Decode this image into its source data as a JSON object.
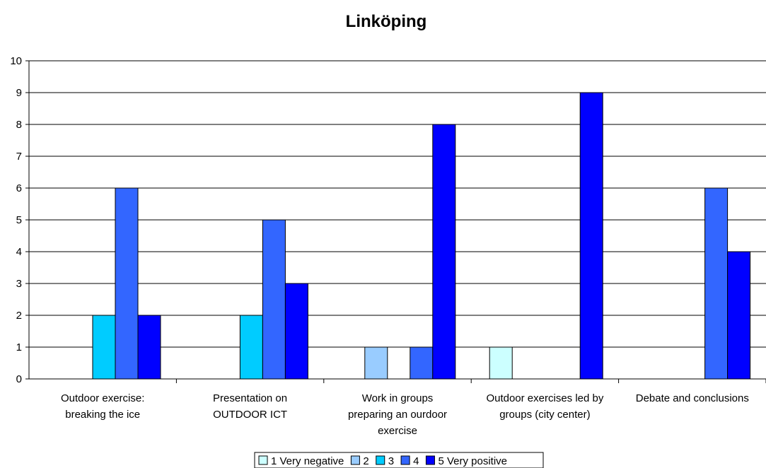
{
  "chart_data": {
    "type": "bar",
    "title": "Linköping",
    "xlabel": "",
    "ylabel": "",
    "ylim": [
      0,
      10
    ],
    "yticks": [
      0,
      1,
      2,
      3,
      4,
      5,
      6,
      7,
      8,
      9,
      10
    ],
    "grid": true,
    "legend_position": "bottom",
    "categories": [
      [
        "Outdoor exercise:",
        "breaking the ice"
      ],
      [
        "Presentation on",
        "OUTDOOR ICT"
      ],
      [
        "Work in groups",
        "preparing an ourdoor",
        "exercise"
      ],
      [
        "Outdoor exercises led by",
        "groups (city center)"
      ],
      [
        "Debate and conclusions"
      ]
    ],
    "series": [
      {
        "name": "1 Very negative",
        "color": "#ccffff",
        "values": [
          0,
          0,
          0,
          1,
          0
        ]
      },
      {
        "name": "2",
        "color": "#99ccff",
        "values": [
          0,
          0,
          1,
          0,
          0
        ]
      },
      {
        "name": "3",
        "color": "#00ccff",
        "values": [
          2,
          2,
          0,
          0,
          0
        ]
      },
      {
        "name": "4",
        "color": "#3366ff",
        "values": [
          6,
          5,
          1,
          0,
          6
        ]
      },
      {
        "name": "5 Very positive",
        "color": "#0000ff",
        "values": [
          2,
          3,
          8,
          9,
          4
        ]
      }
    ]
  }
}
